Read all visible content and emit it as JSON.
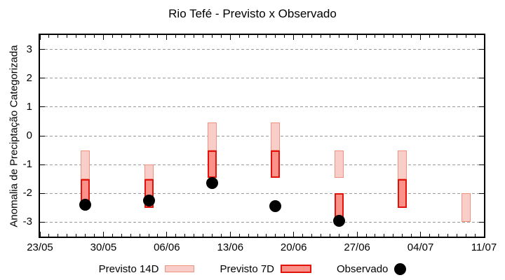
{
  "chart_data": {
    "type": "bar",
    "variant": "floating vertical range bars (forecast intervals) with scatter points (observations)",
    "title": "Rio Tefé - Previsto x Observado",
    "ylabel": "Anomalia de Preciptação Categorizada",
    "xlabel": "",
    "ylim": [
      -3.5,
      3.5
    ],
    "yticks": [
      3,
      2,
      1,
      0,
      -1,
      -2,
      -3
    ],
    "x_days_range": [
      0,
      49
    ],
    "x_minor_tick_every_days": 1,
    "x_major_ticks": [
      {
        "day": 0,
        "label": "23/05"
      },
      {
        "day": 7,
        "label": "30/05"
      },
      {
        "day": 14,
        "label": "06/06"
      },
      {
        "day": 21,
        "label": "13/06"
      },
      {
        "day": 28,
        "label": "20/06"
      },
      {
        "day": 35,
        "label": "27/06"
      },
      {
        "day": 42,
        "label": "04/07"
      },
      {
        "day": 49,
        "label": "11/07"
      }
    ],
    "grid": "horizontal dashed gridlines at integer y values",
    "legend_position": "centered below plot",
    "legend": [
      {
        "label": "Previsto 14D",
        "marker": "box",
        "fill": "#f9cdc8",
        "border": "#f0907e"
      },
      {
        "label": "Previsto 7D",
        "marker": "box",
        "fill": "#fa928a",
        "border": "#e3120b"
      },
      {
        "label": "Observado",
        "marker": "dot",
        "fill": "#000000"
      }
    ],
    "series": [
      {
        "name": "Previsto 14D",
        "ranges": [
          {
            "date": "28/05",
            "day": 5,
            "lo": -1.5,
            "hi": -0.5
          },
          {
            "date": "04/06",
            "day": 12,
            "lo": -1.5,
            "hi": -1.0
          },
          {
            "date": "11/06",
            "day": 19,
            "lo": -0.5,
            "hi": 0.45
          },
          {
            "date": "18/06",
            "day": 26,
            "lo": -0.5,
            "hi": 0.45
          },
          {
            "date": "25/06",
            "day": 33,
            "lo": -1.45,
            "hi": -0.5
          },
          {
            "date": "02/07",
            "day": 40,
            "lo": -1.5,
            "hi": -0.5
          },
          {
            "date": "09/07",
            "day": 47,
            "lo": -3.0,
            "hi": -2.0
          }
        ]
      },
      {
        "name": "Previsto 7D",
        "ranges": [
          {
            "date": "28/05",
            "day": 5,
            "lo": -2.5,
            "hi": -1.5
          },
          {
            "date": "04/06",
            "day": 12,
            "lo": -2.5,
            "hi": -1.5
          },
          {
            "date": "11/06",
            "day": 19,
            "lo": -1.45,
            "hi": -0.5
          },
          {
            "date": "18/06",
            "day": 26,
            "lo": -1.45,
            "hi": -0.5
          },
          {
            "date": "25/06",
            "day": 33,
            "lo": -2.9,
            "hi": -2.0
          },
          {
            "date": "02/07",
            "day": 40,
            "lo": -2.5,
            "hi": -1.5
          }
        ]
      },
      {
        "name": "Observado",
        "points": [
          {
            "date": "28/05",
            "day": 5,
            "y": -2.4
          },
          {
            "date": "04/06",
            "day": 12,
            "y": -2.25
          },
          {
            "date": "11/06",
            "day": 19,
            "y": -1.65
          },
          {
            "date": "18/06",
            "day": 26,
            "y": -2.45
          },
          {
            "date": "25/06",
            "day": 33,
            "y": -2.95
          }
        ]
      }
    ]
  },
  "colors": {
    "axis": "#000000",
    "grid": "#9a9a9a",
    "background": "#ffffff",
    "previsto_14d_fill": "#f9cdc8",
    "previsto_14d_border": "#f0907e",
    "previsto_7d_fill": "#fa928a",
    "previsto_7d_border": "#e3120b",
    "observado": "#000000"
  }
}
